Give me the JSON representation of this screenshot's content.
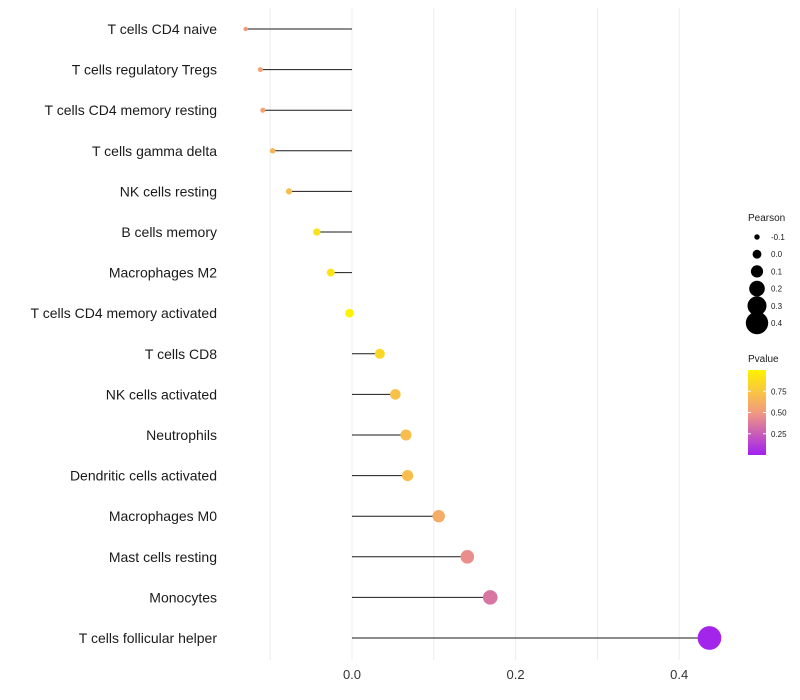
{
  "chart_data": {
    "type": "lollipop",
    "categories": [
      "T cells CD4 naive",
      "T cells regulatory  Tregs",
      "T cells CD4 memory resting",
      "T cells gamma delta",
      "NK cells resting",
      "B cells memory",
      "Macrophages M2",
      "T cells CD4 memory activated",
      "T cells CD8",
      "NK cells activated",
      "Neutrophils",
      "Dendritic cells activated",
      "Macrophages M0",
      "Mast cells resting",
      "Monocytes",
      "T cells follicular helper"
    ],
    "pearson": [
      -0.13,
      -0.112,
      -0.109,
      -0.097,
      -0.077,
      -0.043,
      -0.026,
      -0.003,
      0.034,
      0.053,
      0.066,
      0.068,
      0.106,
      0.141,
      0.169,
      0.437
    ],
    "pvalue": [
      0.5,
      0.55,
      0.55,
      0.65,
      0.7,
      0.9,
      0.92,
      1.0,
      0.85,
      0.72,
      0.7,
      0.7,
      0.6,
      0.45,
      0.35,
      0.02
    ],
    "xlim": [
      -0.17,
      0.46
    ],
    "xticks": [
      0.0,
      0.2,
      0.4
    ],
    "xtick_labels": [
      "0.0",
      "0.2",
      "0.4"
    ],
    "xlabel": "",
    "ylabel": "",
    "grid": true,
    "legend_position": "right",
    "size_legend": {
      "title": "Pearson",
      "values": [
        -0.1,
        0.0,
        0.1,
        0.2,
        0.3,
        0.4
      ],
      "labels": [
        "-0.1",
        "0.0",
        "0.1",
        "0.2",
        "0.3",
        "0.4"
      ]
    },
    "color_legend": {
      "title": "Pvalue",
      "ticks": [
        0.75,
        0.5,
        0.25
      ],
      "tick_labels": [
        "0.75",
        "0.50",
        "0.25"
      ],
      "range": [
        0.0,
        1.0
      ],
      "colors": {
        "high": "#fff200",
        "mid": "#f28e6e",
        "low": "#a020f0"
      }
    }
  }
}
